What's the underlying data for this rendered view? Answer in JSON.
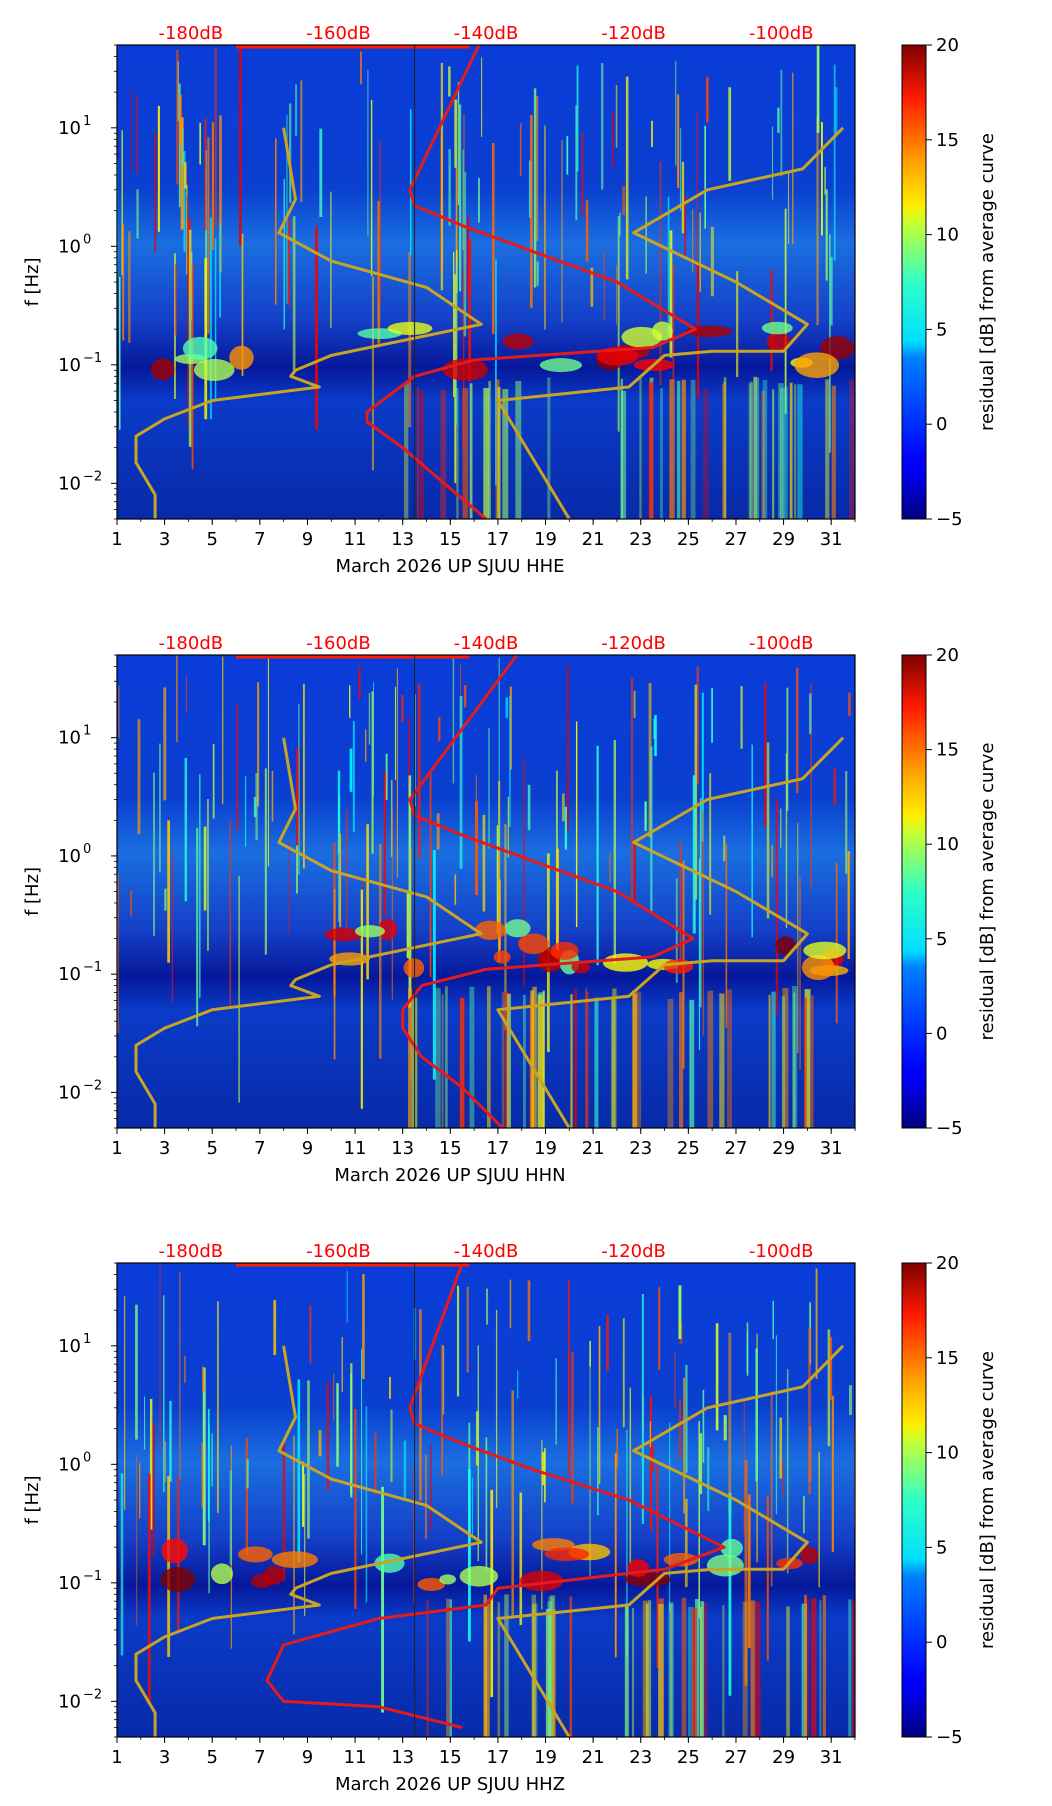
{
  "chart_data": [
    {
      "type": "heatmap",
      "title": "",
      "xlabel": "March 2026 UP SJUU  HHE",
      "ylabel": "f [Hz]",
      "x_ticks": [
        1,
        3,
        5,
        7,
        9,
        11,
        13,
        15,
        17,
        19,
        21,
        23,
        25,
        27,
        29,
        31
      ],
      "xlim": [
        1,
        32
      ],
      "y_scale": "log",
      "ylim": [
        0.005,
        50
      ],
      "y_ticks": [
        {
          "value": 0.01,
          "base": "10",
          "exp": "−2"
        },
        {
          "value": 0.1,
          "base": "10",
          "exp": "−1"
        },
        {
          "value": 1,
          "base": "10",
          "exp": "0"
        },
        {
          "value": 10,
          "base": "10",
          "exp": "1"
        }
      ],
      "top_axis_labels": [
        "-180dB",
        "-160dB",
        "-140dB",
        "-120dB",
        "-100dB"
      ],
      "colorbar": {
        "label": "residual [dB] from average curve",
        "min": -5,
        "max": 20,
        "ticks": [
          "−5",
          "0",
          "5",
          "10",
          "15",
          "20"
        ]
      },
      "series": [
        {
          "name": "average PSD curve",
          "color": "#e41a1c",
          "points": [
            [
              16.2,
              50
            ],
            [
              13.3,
              3
            ],
            [
              13.5,
              2.2
            ],
            [
              15.5,
              1.5
            ],
            [
              18.5,
              0.9
            ],
            [
              22.0,
              0.5
            ],
            [
              25.3,
              0.2
            ],
            [
              23.5,
              0.14
            ],
            [
              16.0,
              0.11
            ],
            [
              13.5,
              0.08
            ],
            [
              11.5,
              0.04
            ],
            [
              11.5,
              0.033
            ],
            [
              13.0,
              0.02
            ],
            [
              14.5,
              0.011
            ],
            [
              16.5,
              0.005
            ]
          ]
        },
        {
          "name": "low noise model",
          "color": "#c8a425",
          "points": [
            [
              8.0,
              10
            ],
            [
              8.5,
              2.5
            ],
            [
              7.8,
              1.3
            ],
            [
              10.0,
              0.75
            ],
            [
              14.0,
              0.45
            ],
            [
              16.3,
              0.22
            ],
            [
              10.0,
              0.12
            ],
            [
              8.5,
              0.09
            ],
            [
              8.3,
              0.08
            ],
            [
              9.5,
              0.065
            ],
            [
              5.0,
              0.05
            ],
            [
              3.0,
              0.035
            ],
            [
              1.8,
              0.025
            ],
            [
              1.8,
              0.015
            ],
            [
              2.6,
              0.008
            ],
            [
              2.6,
              0.005
            ]
          ]
        },
        {
          "name": "high noise model",
          "color": "#c8a425",
          "points": [
            [
              31.5,
              10
            ],
            [
              29.8,
              4.5
            ],
            [
              25.8,
              3
            ],
            [
              22.7,
              1.3
            ],
            [
              27.0,
              0.5
            ],
            [
              30.0,
              0.22
            ],
            [
              29.0,
              0.13
            ],
            [
              26.0,
              0.13
            ],
            [
              24.0,
              0.12
            ],
            [
              22.5,
              0.065
            ],
            [
              17.0,
              0.05
            ],
            [
              20.0,
              0.005
            ]
          ]
        }
      ]
    },
    {
      "type": "heatmap",
      "title": "",
      "xlabel": "March 2026 UP SJUU  HHN",
      "ylabel": "f [Hz]",
      "x_ticks": [
        1,
        3,
        5,
        7,
        9,
        11,
        13,
        15,
        17,
        19,
        21,
        23,
        25,
        27,
        29,
        31
      ],
      "xlim": [
        1,
        32
      ],
      "y_scale": "log",
      "ylim": [
        0.005,
        50
      ],
      "y_ticks": [
        {
          "value": 0.01,
          "base": "10",
          "exp": "−2"
        },
        {
          "value": 0.1,
          "base": "10",
          "exp": "−1"
        },
        {
          "value": 1,
          "base": "10",
          "exp": "0"
        },
        {
          "value": 10,
          "base": "10",
          "exp": "1"
        }
      ],
      "top_axis_labels": [
        "-180dB",
        "-160dB",
        "-140dB",
        "-120dB",
        "-100dB"
      ],
      "colorbar": {
        "label": "residual [dB] from average curve",
        "min": -5,
        "max": 20,
        "ticks": [
          "−5",
          "0",
          "5",
          "10",
          "15",
          "20"
        ]
      },
      "series": [
        {
          "name": "average PSD curve",
          "color": "#e41a1c",
          "points": [
            [
              17.8,
              50
            ],
            [
              13.3,
              3
            ],
            [
              13.5,
              2.2
            ],
            [
              15.5,
              1.5
            ],
            [
              18.5,
              0.9
            ],
            [
              22.0,
              0.5
            ],
            [
              25.2,
              0.2
            ],
            [
              23.5,
              0.14
            ],
            [
              16.5,
              0.11
            ],
            [
              13.8,
              0.08
            ],
            [
              13.0,
              0.05
            ],
            [
              13.0,
              0.035
            ],
            [
              13.8,
              0.02
            ],
            [
              15.5,
              0.011
            ],
            [
              17.2,
              0.005
            ]
          ]
        },
        {
          "name": "low noise model",
          "color": "#c8a425",
          "points": [
            [
              8.0,
              10
            ],
            [
              8.5,
              2.5
            ],
            [
              7.8,
              1.3
            ],
            [
              10.0,
              0.75
            ],
            [
              14.0,
              0.45
            ],
            [
              16.3,
              0.22
            ],
            [
              10.0,
              0.12
            ],
            [
              8.5,
              0.09
            ],
            [
              8.3,
              0.08
            ],
            [
              9.5,
              0.065
            ],
            [
              5.0,
              0.05
            ],
            [
              3.0,
              0.035
            ],
            [
              1.8,
              0.025
            ],
            [
              1.8,
              0.015
            ],
            [
              2.6,
              0.008
            ],
            [
              2.6,
              0.005
            ]
          ]
        },
        {
          "name": "high noise model",
          "color": "#c8a425",
          "points": [
            [
              31.5,
              10
            ],
            [
              29.8,
              4.5
            ],
            [
              25.8,
              3
            ],
            [
              22.7,
              1.3
            ],
            [
              27.0,
              0.5
            ],
            [
              30.0,
              0.22
            ],
            [
              29.0,
              0.13
            ],
            [
              26.0,
              0.13
            ],
            [
              24.0,
              0.12
            ],
            [
              22.5,
              0.065
            ],
            [
              17.0,
              0.05
            ],
            [
              20.0,
              0.005
            ]
          ]
        }
      ]
    },
    {
      "type": "heatmap",
      "title": "",
      "xlabel": "March 2026 UP SJUU  HHZ",
      "ylabel": "f [Hz]",
      "x_ticks": [
        1,
        3,
        5,
        7,
        9,
        11,
        13,
        15,
        17,
        19,
        21,
        23,
        25,
        27,
        29,
        31
      ],
      "xlim": [
        1,
        32
      ],
      "y_scale": "log",
      "ylim": [
        0.005,
        50
      ],
      "y_ticks": [
        {
          "value": 0.01,
          "base": "10",
          "exp": "−2"
        },
        {
          "value": 0.1,
          "base": "10",
          "exp": "−1"
        },
        {
          "value": 1,
          "base": "10",
          "exp": "0"
        },
        {
          "value": 10,
          "base": "10",
          "exp": "1"
        }
      ],
      "top_axis_labels": [
        "-180dB",
        "-160dB",
        "-140dB",
        "-120dB",
        "-100dB"
      ],
      "colorbar": {
        "label": "residual [dB] from average curve",
        "min": -5,
        "max": 20,
        "ticks": [
          "−5",
          "0",
          "5",
          "10",
          "15",
          "20"
        ]
      },
      "series": [
        {
          "name": "average PSD curve",
          "color": "#e41a1c",
          "points": [
            [
              15.5,
              50
            ],
            [
              13.3,
              3
            ],
            [
              13.5,
              2.2
            ],
            [
              15.5,
              1.5
            ],
            [
              18.5,
              0.9
            ],
            [
              22.5,
              0.5
            ],
            [
              26.5,
              0.2
            ],
            [
              24.0,
              0.13
            ],
            [
              17.0,
              0.09
            ],
            [
              16.5,
              0.065
            ],
            [
              12.0,
              0.05
            ],
            [
              8.0,
              0.03
            ],
            [
              7.3,
              0.015
            ],
            [
              8.0,
              0.01
            ],
            [
              12.0,
              0.009
            ],
            [
              15.5,
              0.006
            ]
          ]
        },
        {
          "name": "low noise model",
          "color": "#c8a425",
          "points": [
            [
              8.0,
              10
            ],
            [
              8.5,
              2.5
            ],
            [
              7.8,
              1.3
            ],
            [
              10.0,
              0.75
            ],
            [
              14.0,
              0.45
            ],
            [
              16.3,
              0.22
            ],
            [
              10.0,
              0.12
            ],
            [
              8.5,
              0.09
            ],
            [
              8.3,
              0.08
            ],
            [
              9.5,
              0.065
            ],
            [
              5.0,
              0.05
            ],
            [
              3.0,
              0.035
            ],
            [
              1.8,
              0.025
            ],
            [
              1.8,
              0.015
            ],
            [
              2.6,
              0.008
            ],
            [
              2.6,
              0.005
            ]
          ]
        },
        {
          "name": "high noise model",
          "color": "#c8a425",
          "points": [
            [
              31.5,
              10
            ],
            [
              29.8,
              4.5
            ],
            [
              25.8,
              3
            ],
            [
              22.7,
              1.3
            ],
            [
              27.0,
              0.5
            ],
            [
              30.0,
              0.22
            ],
            [
              29.0,
              0.13
            ],
            [
              26.0,
              0.13
            ],
            [
              24.0,
              0.12
            ],
            [
              22.5,
              0.065
            ],
            [
              17.0,
              0.05
            ],
            [
              20.0,
              0.005
            ]
          ]
        }
      ]
    }
  ]
}
